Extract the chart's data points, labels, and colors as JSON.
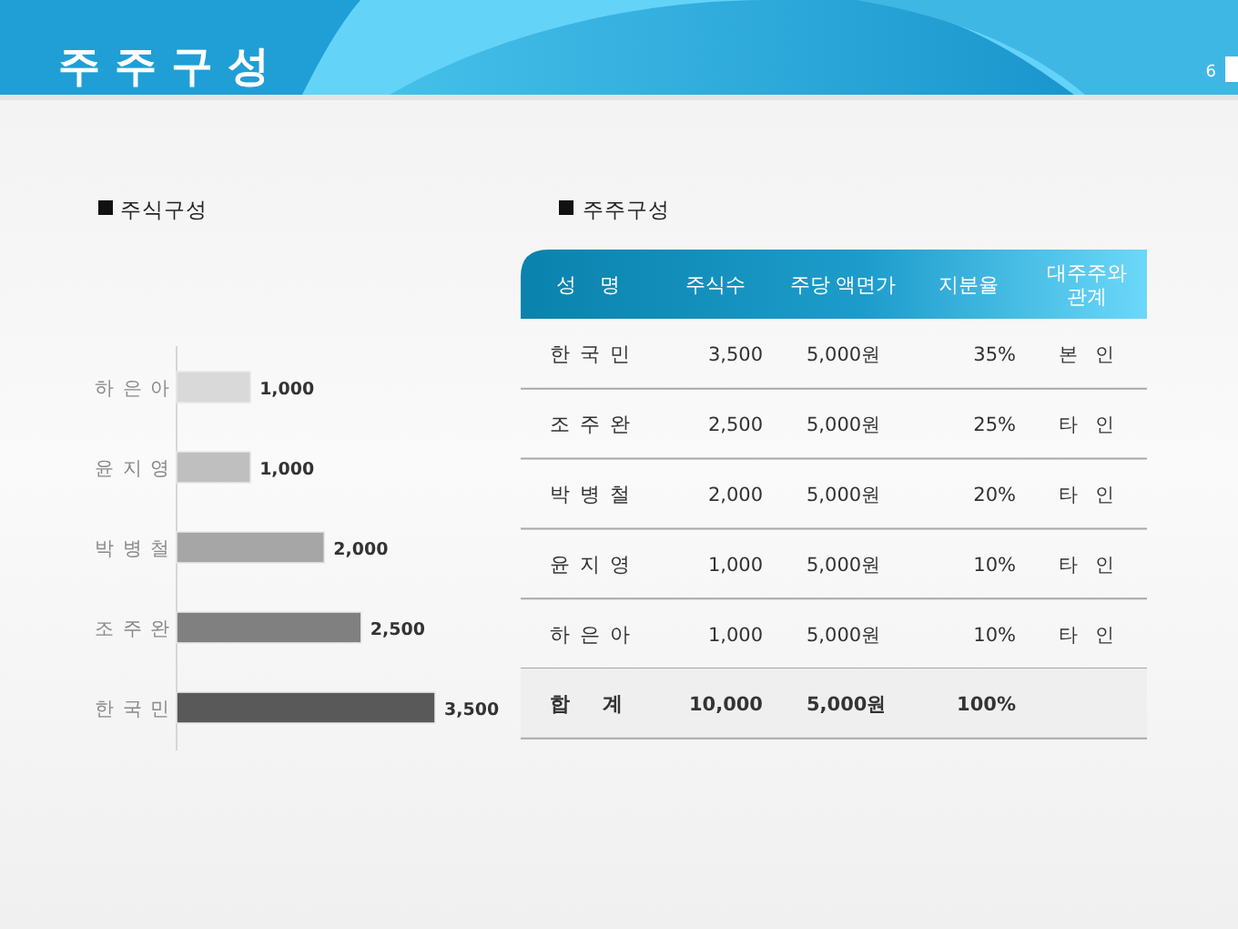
{
  "chart_data": [
    {
      "type": "bar",
      "orientation": "horizontal",
      "title": "주식구성",
      "annotations": [
        "주 주 구 성",
        "6"
      ],
      "categories": [
        "하 은 아",
        "윤 지 영",
        "박 병 철",
        "조 주 완",
        "한 국 민"
      ],
      "values": [
        1000,
        1000,
        2000,
        2500,
        3500
      ],
      "colors": [
        "#d9d9d9",
        "#bfbfbf",
        "#a6a6a6",
        "#808080",
        "#595959"
      ],
      "value_labels": [
        "1,000",
        "1,000",
        "2,000",
        "2,500",
        "3,500"
      ]
    },
    {
      "type": "other",
      "title": "주주구성",
      "categories": [
        "성 명",
        "주식수",
        "주당 액면가",
        "지분율",
        "대주주와 관계"
      ],
      "y_categories": [
        "한 국 민",
        "조 주 완",
        "박 병 철",
        "윤 지 영",
        "하 은 아",
        "합 계"
      ],
      "cell_labels": [
        [
          "3,500",
          "5,000원",
          "35%",
          "본 인"
        ],
        [
          "2,500",
          "5,000원",
          "25%",
          "타 인"
        ],
        [
          "2,000",
          "5,000원",
          "20%",
          "타 인"
        ],
        [
          "1,000",
          "5,000원",
          "10%",
          "타 인"
        ],
        [
          "1,000",
          "5,000원",
          "10%",
          "타 인"
        ],
        [
          "10,000",
          "5,000원",
          "100%",
          null
        ]
      ]
    }
  ]
}
